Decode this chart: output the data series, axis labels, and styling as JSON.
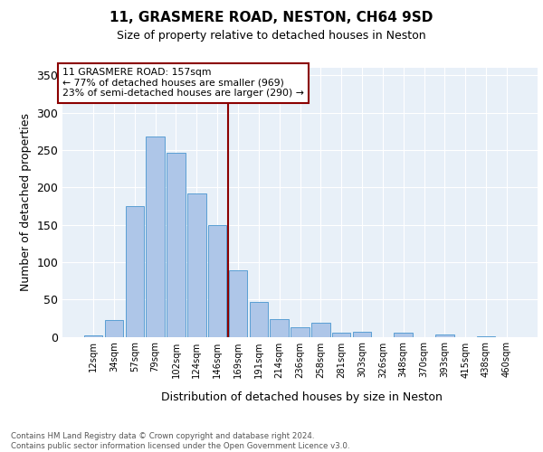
{
  "title1": "11, GRASMERE ROAD, NESTON, CH64 9SD",
  "title2": "Size of property relative to detached houses in Neston",
  "xlabel": "Distribution of detached houses by size in Neston",
  "ylabel": "Number of detached properties",
  "bin_labels": [
    "12sqm",
    "34sqm",
    "57sqm",
    "79sqm",
    "102sqm",
    "124sqm",
    "146sqm",
    "169sqm",
    "191sqm",
    "214sqm",
    "236sqm",
    "258sqm",
    "281sqm",
    "303sqm",
    "326sqm",
    "348sqm",
    "370sqm",
    "393sqm",
    "415sqm",
    "438sqm",
    "460sqm"
  ],
  "bar_values": [
    2,
    22,
    175,
    268,
    246,
    192,
    150,
    89,
    47,
    24,
    13,
    19,
    5,
    7,
    0,
    5,
    0,
    3,
    0,
    1,
    0
  ],
  "bar_color": "#aec6e8",
  "bar_edge_color": "#5a9fd4",
  "vline_x": 6.5,
  "vline_color": "#8b0000",
  "annotation_text": "11 GRASMERE ROAD: 157sqm\n← 77% of detached houses are smaller (969)\n23% of semi-detached houses are larger (290) →",
  "annotation_box_color": "#ffffff",
  "annotation_box_edge_color": "#8b0000",
  "yticks": [
    0,
    50,
    100,
    150,
    200,
    250,
    300,
    350
  ],
  "ylim": [
    0,
    360
  ],
  "background_color": "#e8f0f8",
  "footnote": "Contains HM Land Registry data © Crown copyright and database right 2024.\nContains public sector information licensed under the Open Government Licence v3.0."
}
